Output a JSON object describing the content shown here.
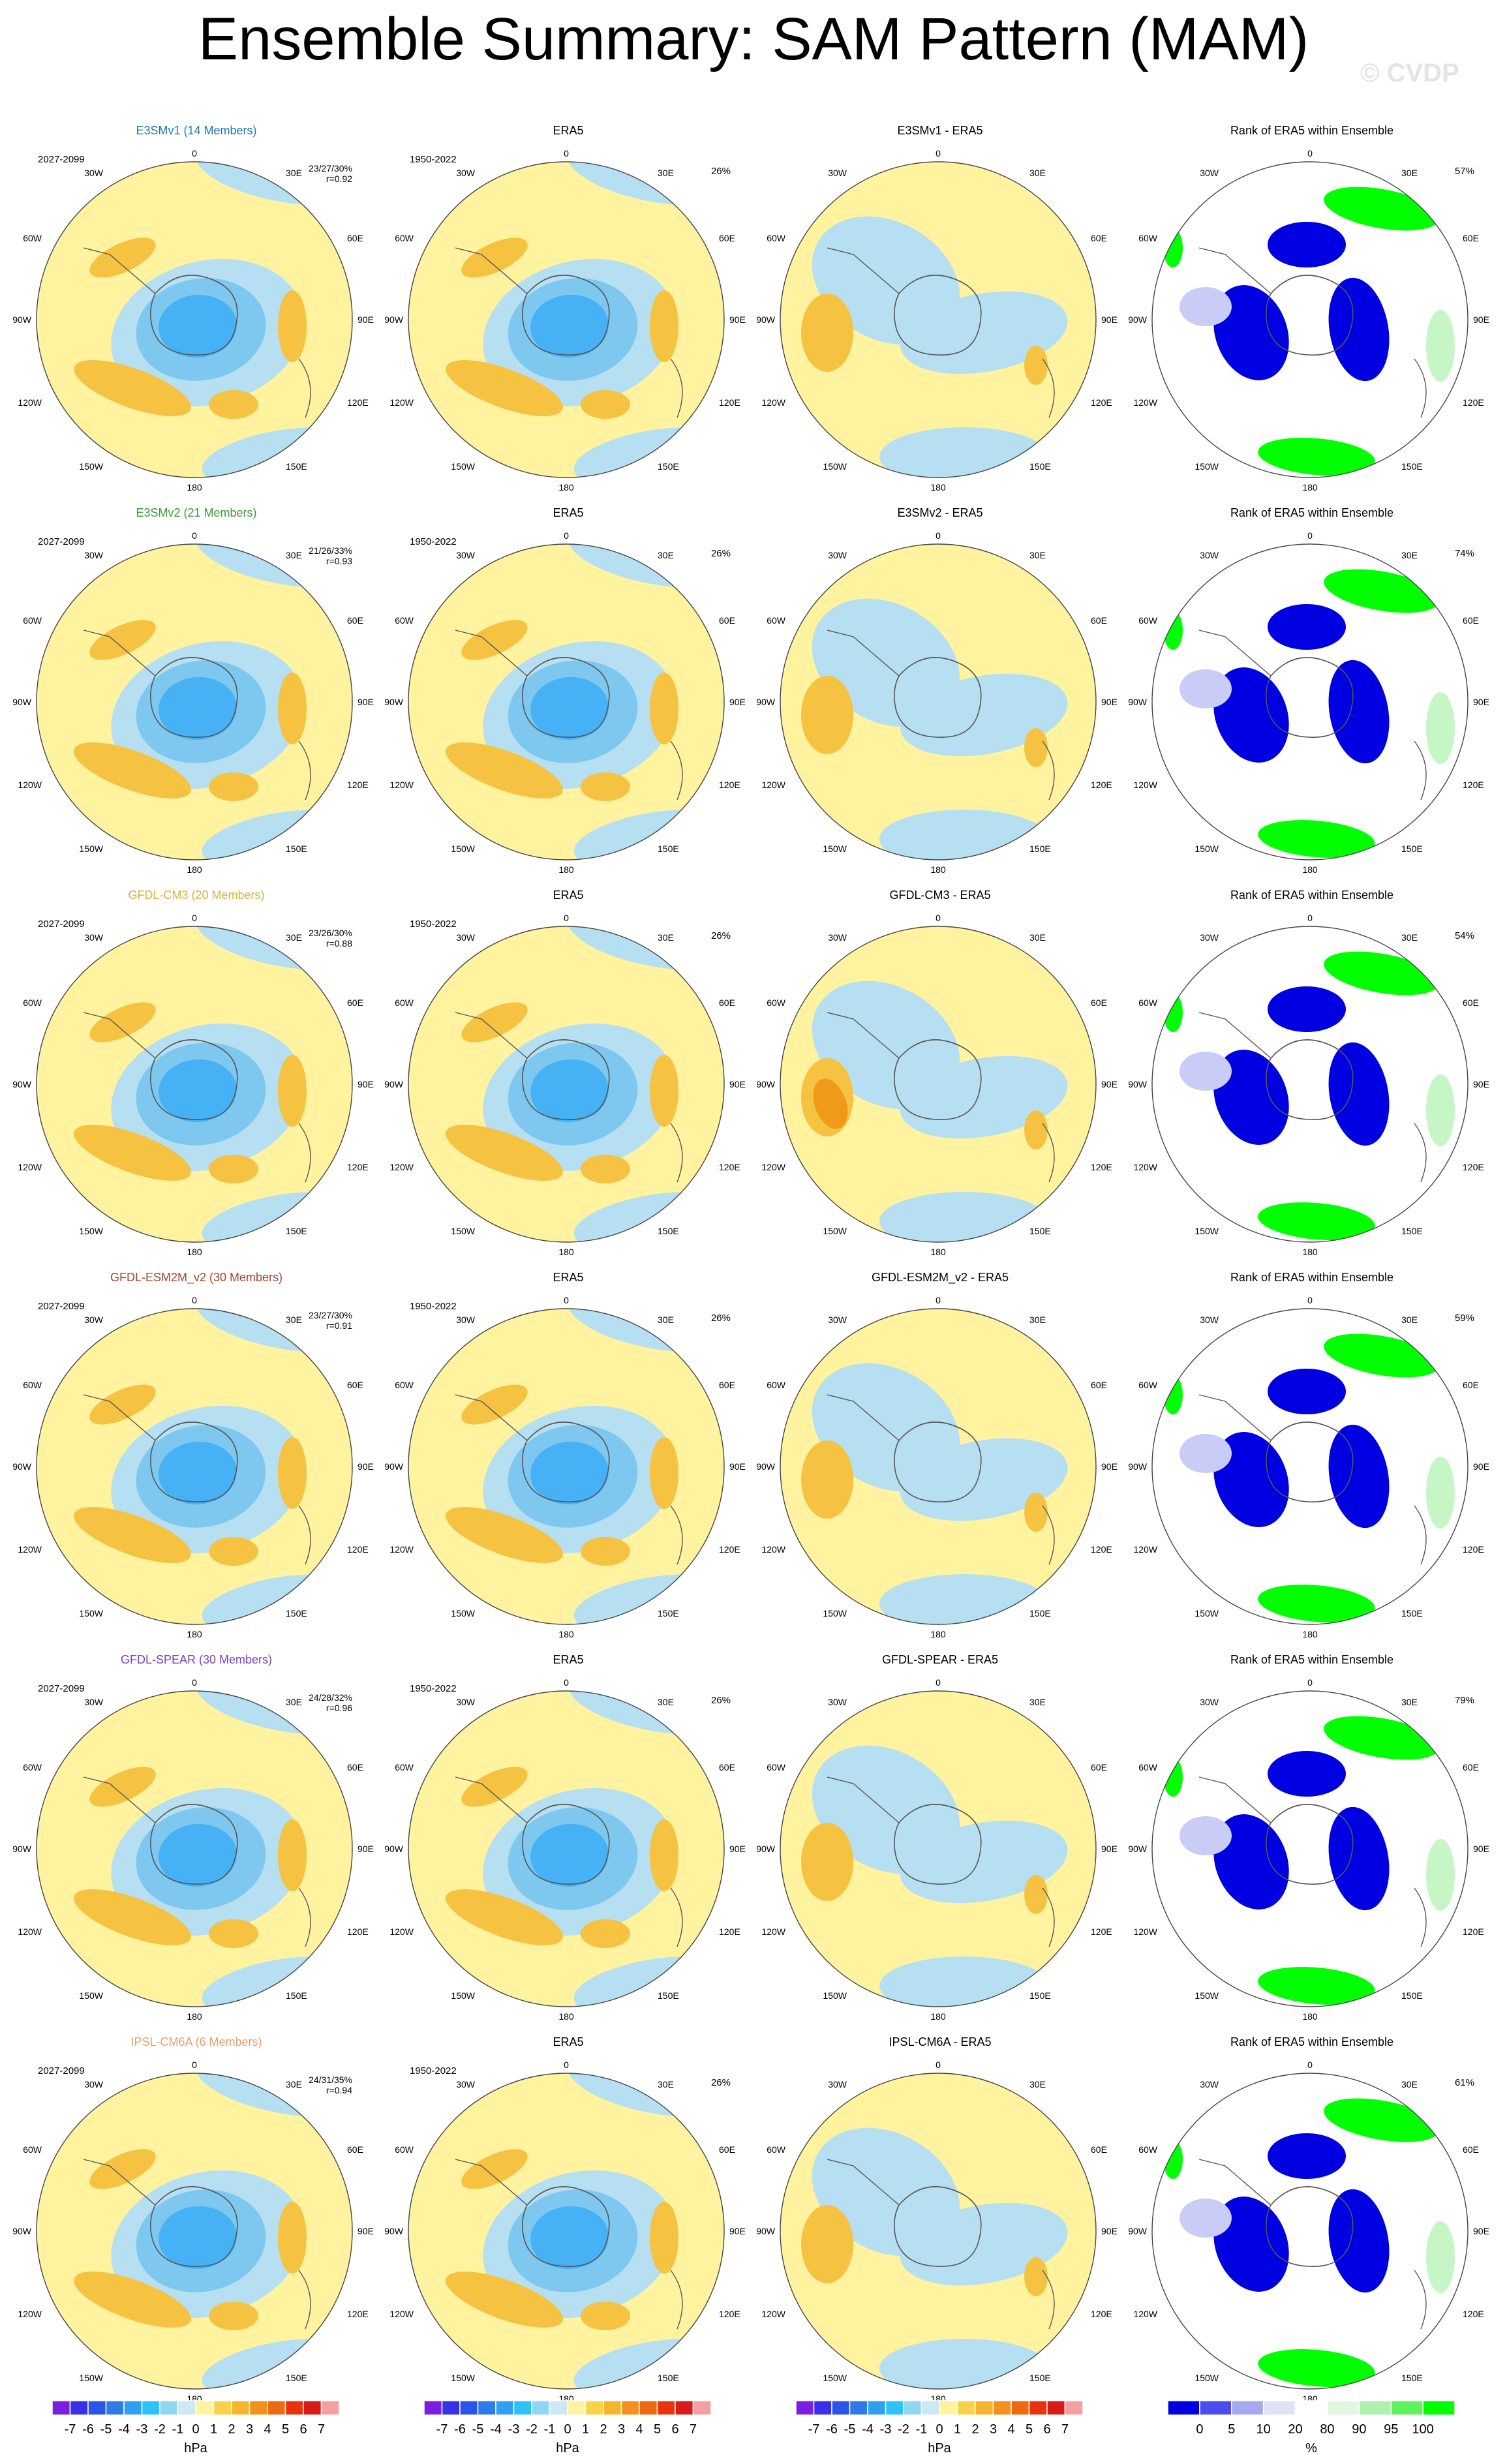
{
  "title": "Ensemble Summary: SAM Pattern (MAM)",
  "watermark": "© CVDP",
  "colors": {
    "yellow": "#fff3a0",
    "orange": "#f5c242",
    "darkorange": "#f09a1a",
    "lightblue": "#b7dff2",
    "midblue": "#7ec8f0",
    "blue": "#46b1f5",
    "rank_blue": "#0000e0",
    "rank_lightblue": "#c8ccf6",
    "rank_green": "#00ff00",
    "rank_lightgreen": "#c6f5c6",
    "model_title_colors": [
      "#1f77b4",
      "#3a9b3a",
      "#d4b53d",
      "#a0462c",
      "#7a3fbf",
      "#e4a070"
    ]
  },
  "degree_labels": {
    "top": "0",
    "bottom": "180",
    "left": "90W",
    "right": "90E",
    "ul_a": "30W",
    "ul_b": "60W",
    "ur_a": "30E",
    "ur_b": "60E",
    "ll_a": "120W",
    "ll_b": "150W",
    "lr_a": "120E",
    "lr_b": "150E"
  },
  "rows": [
    {
      "model_title": "E3SMv1 (14 Members)",
      "period": "2027-2099",
      "stats": "23/27/30%",
      "r": "r=0.92",
      "era_title": "ERA5",
      "era_period": "1950-2022",
      "era_pct": "26%",
      "diff_title": "E3SMv1 - ERA5",
      "rank_title": "Rank of ERA5 within Ensemble",
      "rank_pct": "57%"
    },
    {
      "model_title": "E3SMv2 (21 Members)",
      "period": "2027-2099",
      "stats": "21/26/33%",
      "r": "r=0.93",
      "era_title": "ERA5",
      "era_period": "1950-2022",
      "era_pct": "26%",
      "diff_title": "E3SMv2 - ERA5",
      "rank_title": "Rank of ERA5 within Ensemble",
      "rank_pct": "74%"
    },
    {
      "model_title": "GFDL-CM3 (20 Members)",
      "period": "2027-2099",
      "stats": "23/26/30%",
      "r": "r=0.88",
      "era_title": "ERA5",
      "era_period": "1950-2022",
      "era_pct": "26%",
      "diff_title": "GFDL-CM3 - ERA5",
      "rank_title": "Rank of ERA5 within Ensemble",
      "rank_pct": "54%"
    },
    {
      "model_title": "GFDL-ESM2M_v2 (30 Members)",
      "period": "2027-2099",
      "stats": "23/27/30%",
      "r": "r=0.91",
      "era_title": "ERA5",
      "era_period": "1950-2022",
      "era_pct": "26%",
      "diff_title": "GFDL-ESM2M_v2 - ERA5",
      "rank_title": "Rank of ERA5 within Ensemble",
      "rank_pct": "59%"
    },
    {
      "model_title": "GFDL-SPEAR (30 Members)",
      "period": "2027-2099",
      "stats": "24/28/32%",
      "r": "r=0.96",
      "era_title": "ERA5",
      "era_period": "1950-2022",
      "era_pct": "26%",
      "diff_title": "GFDL-SPEAR - ERA5",
      "rank_title": "Rank of ERA5 within Ensemble",
      "rank_pct": "79%"
    },
    {
      "model_title": "IPSL-CM6A (6 Members)",
      "period": "2027-2099",
      "stats": "24/31/35%",
      "r": "r=0.94",
      "era_title": "ERA5",
      "era_period": "1950-2022",
      "era_pct": "26%",
      "diff_title": "IPSL-CM6A - ERA5",
      "rank_title": "Rank of ERA5 within Ensemble",
      "rank_pct": "61%"
    }
  ],
  "colorbar_hpa": {
    "labels": [
      "-7",
      "-6",
      "-5",
      "-4",
      "-3",
      "-2",
      "-1",
      "0",
      "1",
      "2",
      "3",
      "4",
      "5",
      "6",
      "7"
    ],
    "unit": "hPa",
    "colors": [
      "#7a1fe0",
      "#3a2fe8",
      "#2b55e8",
      "#2f7ae8",
      "#2fa0f0",
      "#2fc2f8",
      "#8fd6f2",
      "#cde9f4",
      "#fff3a0",
      "#f8d24a",
      "#f5b52f",
      "#f3901e",
      "#ee6a12",
      "#e8330e",
      "#d81a1a",
      "#f4a0a0"
    ]
  },
  "colorbar_rank": {
    "labels": [
      "0",
      "5",
      "10",
      "20",
      "80",
      "90",
      "95",
      "100"
    ],
    "unit": "%",
    "colors": [
      "#0000e0",
      "#4b4bf0",
      "#a6a8f0",
      "#e0e2f8",
      "#ffffff",
      "#e0f8e0",
      "#aef0ae",
      "#60f060",
      "#00ff00"
    ]
  }
}
